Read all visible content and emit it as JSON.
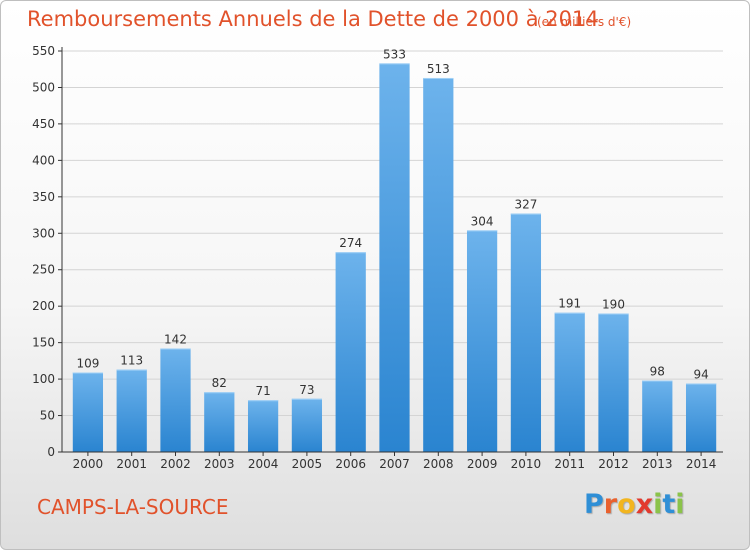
{
  "header": {
    "title": "Remboursements Annuels de la Dette de 2000 à 2014",
    "subtitle": "(en milliers d'€)"
  },
  "footer": {
    "commune": "CAMPS-LA-SOURCE",
    "logo_letters": [
      "P",
      "r",
      "o",
      "x",
      "i",
      "t",
      "i"
    ],
    "logo_colors": [
      "#2f8fd6",
      "#e9612e",
      "#f2b51f",
      "#e23a2e",
      "#8bc34a",
      "#2f8fd6",
      "#8bc34a"
    ]
  },
  "colors": {
    "bar_light": "#6db3ec",
    "bar_dark": "#2a84d0",
    "axis": "#333333",
    "grid": "#d4d4d4",
    "accent": "#e1522b"
  },
  "chart_data": {
    "type": "bar",
    "categories": [
      "2000",
      "2001",
      "2002",
      "2003",
      "2004",
      "2005",
      "2006",
      "2007",
      "2008",
      "2009",
      "2010",
      "2011",
      "2012",
      "2013",
      "2014"
    ],
    "values": [
      109,
      113,
      142,
      82,
      71,
      73,
      274,
      533,
      513,
      304,
      327,
      191,
      190,
      98,
      94
    ],
    "ylim": [
      0,
      550
    ],
    "yticks": [
      0,
      50,
      100,
      150,
      200,
      250,
      300,
      350,
      400,
      450,
      500,
      550
    ],
    "grid": true,
    "legend": "none"
  }
}
